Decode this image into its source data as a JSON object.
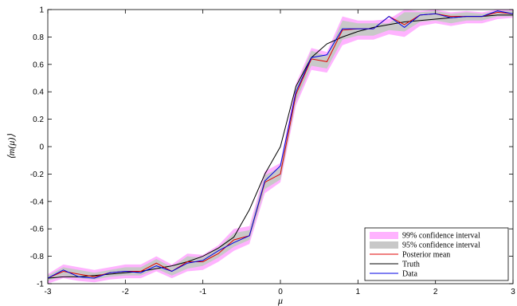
{
  "chart_data": {
    "type": "line",
    "xlabel": "μ",
    "ylabel": "⟨m(μ)⟩",
    "xlim": [
      -3,
      3
    ],
    "ylim": [
      -1,
      1
    ],
    "xticks": [
      -3,
      -2,
      -1,
      0,
      1,
      2,
      3
    ],
    "yticks": [
      -1,
      -0.8,
      -0.6,
      -0.4,
      -0.2,
      0,
      0.2,
      0.4,
      0.6,
      0.8,
      1
    ],
    "legend_position": "bottom-right",
    "x": [
      -3.0,
      -2.8,
      -2.6,
      -2.4,
      -2.2,
      -2.0,
      -1.8,
      -1.6,
      -1.4,
      -1.2,
      -1.0,
      -0.8,
      -0.6,
      -0.4,
      -0.2,
      0.0,
      0.2,
      0.4,
      0.6,
      0.8,
      1.0,
      1.2,
      1.4,
      1.6,
      1.8,
      2.0,
      2.2,
      2.4,
      2.6,
      2.8,
      3.0
    ],
    "series": [
      {
        "name": "99% confidence interval",
        "kind": "band",
        "color": "#ffb3ff",
        "lower": [
          -1.0,
          -0.96,
          -0.98,
          -0.99,
          -0.97,
          -0.96,
          -0.96,
          -0.91,
          -0.96,
          -0.91,
          -0.9,
          -0.84,
          -0.76,
          -0.71,
          -0.34,
          -0.26,
          0.3,
          0.56,
          0.54,
          0.74,
          0.78,
          0.78,
          0.82,
          0.8,
          0.88,
          0.9,
          0.88,
          0.9,
          0.9,
          0.93,
          0.94
        ],
        "upper": [
          -0.93,
          -0.86,
          -0.88,
          -0.9,
          -0.88,
          -0.86,
          -0.86,
          -0.8,
          -0.86,
          -0.78,
          -0.79,
          -0.72,
          -0.6,
          -0.58,
          -0.18,
          -0.12,
          0.46,
          0.72,
          0.69,
          0.95,
          0.92,
          0.92,
          0.93,
          1.0,
          0.99,
          1.0,
          0.98,
          0.99,
          0.98,
          1.0,
          1.0
        ]
      },
      {
        "name": "95% confidence interval",
        "kind": "band",
        "color": "#c8c8c8",
        "lower": [
          -0.98,
          -0.94,
          -0.96,
          -0.97,
          -0.95,
          -0.94,
          -0.94,
          -0.89,
          -0.94,
          -0.89,
          -0.87,
          -0.81,
          -0.73,
          -0.68,
          -0.31,
          -0.24,
          0.33,
          0.59,
          0.57,
          0.78,
          0.81,
          0.81,
          0.85,
          0.84,
          0.91,
          0.92,
          0.9,
          0.92,
          0.92,
          0.95,
          0.95
        ],
        "upper": [
          -0.94,
          -0.88,
          -0.9,
          -0.92,
          -0.9,
          -0.88,
          -0.88,
          -0.82,
          -0.88,
          -0.8,
          -0.81,
          -0.74,
          -0.63,
          -0.61,
          -0.21,
          -0.15,
          0.43,
          0.7,
          0.66,
          0.92,
          0.9,
          0.9,
          0.9,
          0.98,
          0.98,
          0.99,
          0.97,
          0.98,
          0.97,
          0.99,
          0.99
        ]
      },
      {
        "name": "Posterior mean",
        "kind": "line",
        "color": "#e00000",
        "values": [
          -0.96,
          -0.91,
          -0.93,
          -0.95,
          -0.92,
          -0.91,
          -0.91,
          -0.85,
          -0.91,
          -0.84,
          -0.84,
          -0.78,
          -0.68,
          -0.65,
          -0.26,
          -0.2,
          0.38,
          0.64,
          0.62,
          0.85,
          0.86,
          0.86,
          0.95,
          0.89,
          0.96,
          0.97,
          0.95,
          0.95,
          0.95,
          0.98,
          0.97
        ]
      },
      {
        "name": "Truth",
        "kind": "line",
        "color": "#000000",
        "values": [
          -0.96,
          -0.95,
          -0.95,
          -0.94,
          -0.93,
          -0.92,
          -0.91,
          -0.89,
          -0.87,
          -0.84,
          -0.8,
          -0.74,
          -0.66,
          -0.46,
          -0.2,
          0.0,
          0.44,
          0.65,
          0.75,
          0.8,
          0.84,
          0.87,
          0.89,
          0.91,
          0.92,
          0.93,
          0.94,
          0.95,
          0.95,
          0.96,
          0.96
        ]
      },
      {
        "name": "Data",
        "kind": "line",
        "color": "#0000e6",
        "values": [
          -0.96,
          -0.9,
          -0.95,
          -0.96,
          -0.92,
          -0.91,
          -0.92,
          -0.87,
          -0.91,
          -0.85,
          -0.83,
          -0.76,
          -0.7,
          -0.65,
          -0.25,
          -0.14,
          0.4,
          0.65,
          0.67,
          0.86,
          0.86,
          0.86,
          0.95,
          0.87,
          0.96,
          0.97,
          0.94,
          0.95,
          0.95,
          0.99,
          0.97
        ]
      }
    ]
  }
}
